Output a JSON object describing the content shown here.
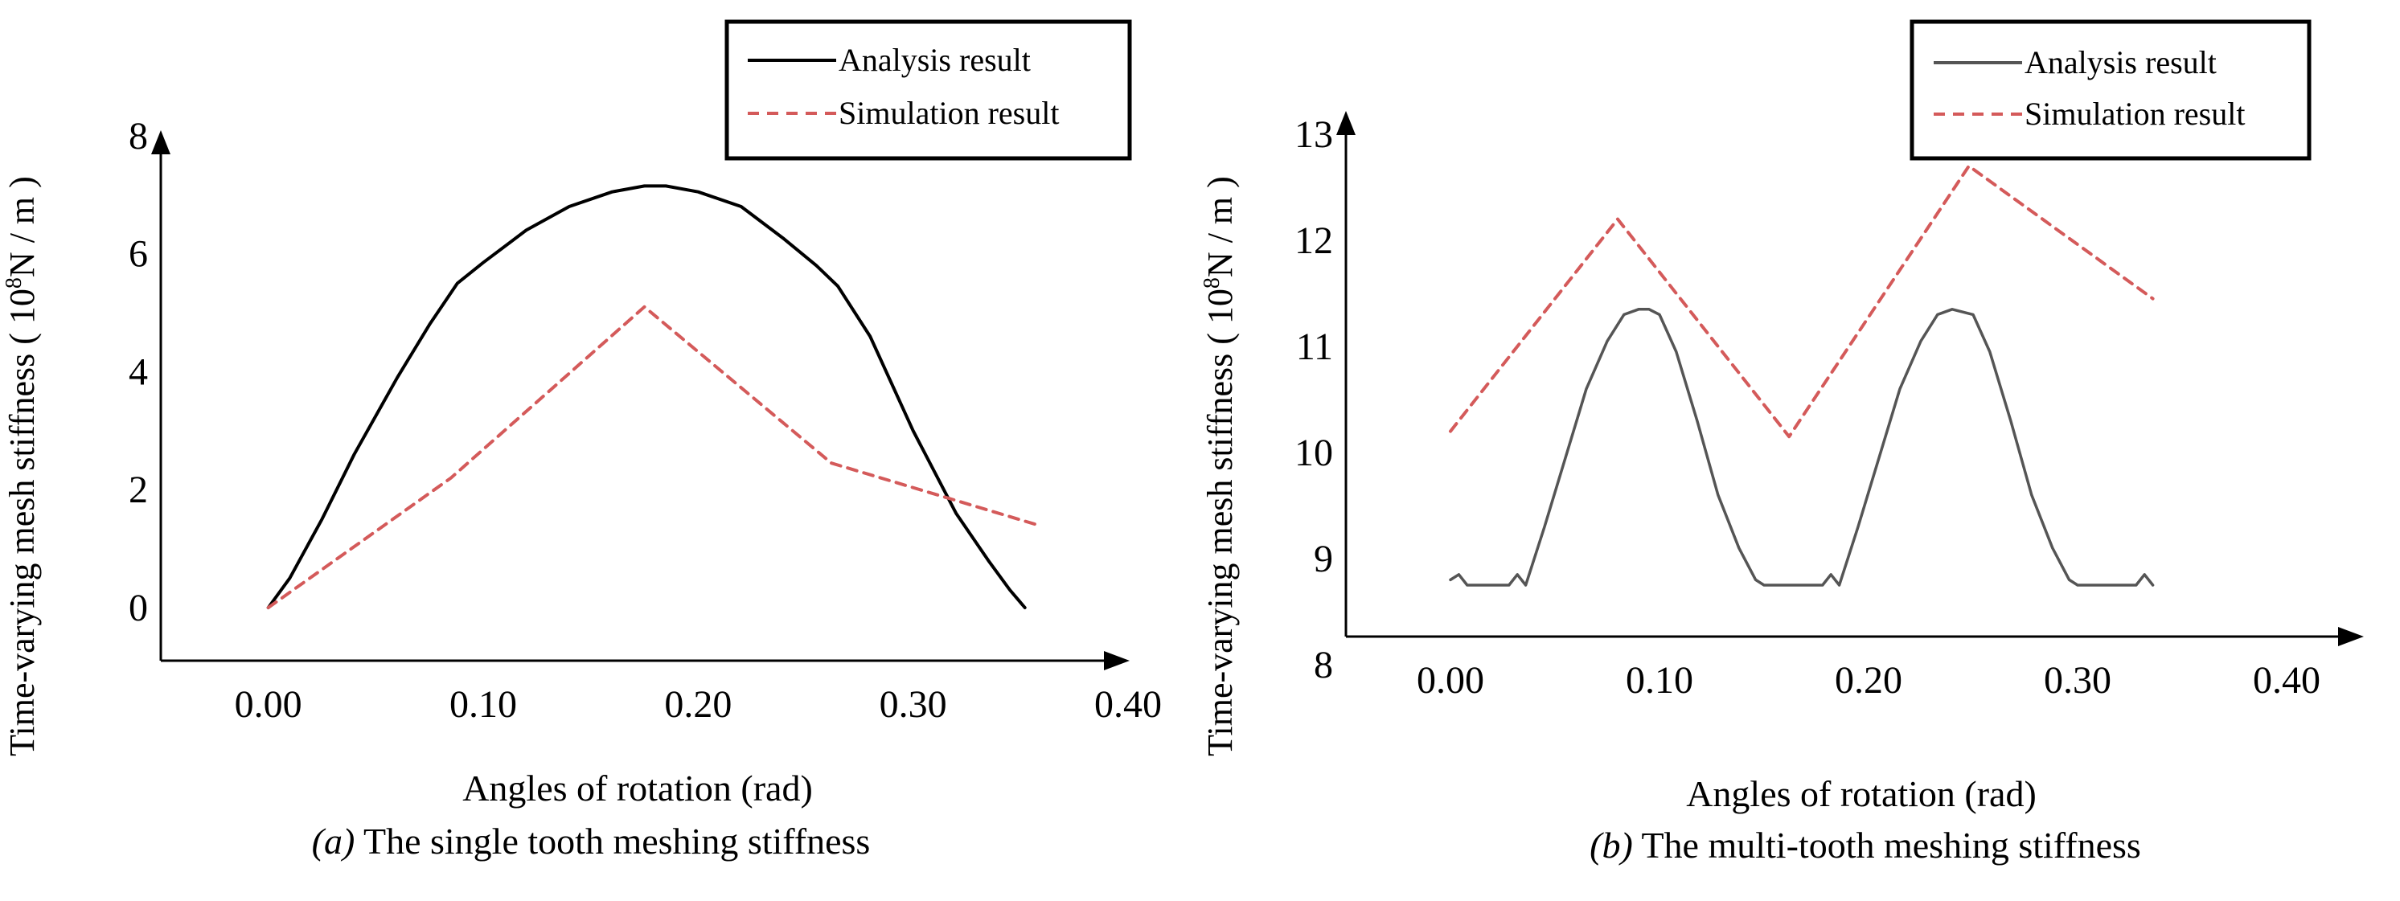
{
  "axis_titles": {
    "y_prefix": "Time-varying mesh stiffness ( 10",
    "y_exponent": "8",
    "y_suffix": "N / m )",
    "x": "Angles of rotation (rad)"
  },
  "legend": {
    "analysis": "Analysis result",
    "simulation": "Simulation result"
  },
  "colors": {
    "analysis": "#000000",
    "analysis_b": "#555555",
    "simulation": "#d45a5a",
    "axis": "#000000"
  },
  "chart_data": [
    {
      "type": "line",
      "title": "The single tooth meshing stiffness",
      "caption_tag": "(a)",
      "xlabel": "Angles of rotation (rad)",
      "ylabel": "Time-varying mesh stiffness ( 10^8 N / m )",
      "xlim": [
        -0.05,
        0.4
      ],
      "ylim": [
        -0.9,
        8
      ],
      "xticks": [
        "0.00",
        "0.10",
        "0.20",
        "0.30",
        "0.40"
      ],
      "xtick_values": [
        0,
        0.1,
        0.2,
        0.3,
        0.4
      ],
      "yticks": [
        "0",
        "2",
        "4",
        "6",
        "8"
      ],
      "ytick_values": [
        0,
        2,
        4,
        6,
        8
      ],
      "grid": false,
      "legend_position": "top-right",
      "series": [
        {
          "name": "Analysis result",
          "style": "solid",
          "x": [
            0.0,
            0.01,
            0.025,
            0.04,
            0.06,
            0.075,
            0.088,
            0.1,
            0.12,
            0.14,
            0.16,
            0.175,
            0.185,
            0.2,
            0.22,
            0.24,
            0.255,
            0.265,
            0.28,
            0.3,
            0.32,
            0.335,
            0.345,
            0.352
          ],
          "y": [
            0.0,
            0.5,
            1.5,
            2.6,
            3.9,
            4.8,
            5.5,
            5.85,
            6.4,
            6.8,
            7.05,
            7.15,
            7.15,
            7.05,
            6.8,
            6.25,
            5.8,
            5.45,
            4.6,
            3.0,
            1.6,
            0.8,
            0.3,
            0.0
          ]
        },
        {
          "name": "Simulation result",
          "style": "dashed",
          "x": [
            0.0,
            0.085,
            0.175,
            0.262,
            0.358
          ],
          "y": [
            0.0,
            2.2,
            5.1,
            2.45,
            1.4
          ]
        }
      ]
    },
    {
      "type": "line",
      "title": "The multi-tooth meshing stiffness",
      "caption_tag": "(b)",
      "xlabel": "Angles of rotation (rad)",
      "ylabel": "Time-varying mesh stiffness ( 10^8 N / m )",
      "xlim": [
        -0.05,
        0.4
      ],
      "ylim": [
        8,
        13
      ],
      "xticks": [
        "0.00",
        "0.10",
        "0.20",
        "0.30",
        "0.40"
      ],
      "xtick_values": [
        0,
        0.1,
        0.2,
        0.3,
        0.4
      ],
      "yticks": [
        "8",
        "9",
        "10",
        "11",
        "12",
        "13"
      ],
      "ytick_values": [
        8,
        9,
        10,
        11,
        12,
        13
      ],
      "grid": false,
      "legend_position": "top-right",
      "series": [
        {
          "name": "Analysis result",
          "style": "solid",
          "x": [
            0.0,
            0.004,
            0.008,
            0.02,
            0.028,
            0.032,
            0.036,
            0.045,
            0.055,
            0.065,
            0.075,
            0.083,
            0.09,
            0.095,
            0.1,
            0.108,
            0.118,
            0.128,
            0.138,
            0.146,
            0.15,
            0.16,
            0.17,
            0.178,
            0.182,
            0.186,
            0.195,
            0.205,
            0.215,
            0.225,
            0.233,
            0.24,
            0.25,
            0.258,
            0.268,
            0.278,
            0.288,
            0.296,
            0.3,
            0.31,
            0.32,
            0.328,
            0.332,
            0.336
          ],
          "y": [
            8.8,
            8.85,
            8.75,
            8.75,
            8.75,
            8.85,
            8.75,
            9.3,
            9.95,
            10.6,
            11.05,
            11.3,
            11.35,
            11.35,
            11.3,
            10.95,
            10.3,
            9.6,
            9.1,
            8.8,
            8.75,
            8.75,
            8.75,
            8.75,
            8.85,
            8.75,
            9.3,
            9.95,
            10.6,
            11.05,
            11.3,
            11.35,
            11.3,
            10.95,
            10.3,
            9.6,
            9.1,
            8.8,
            8.75,
            8.75,
            8.75,
            8.75,
            8.85,
            8.75
          ]
        },
        {
          "name": "Simulation result",
          "style": "dashed",
          "x": [
            0.0,
            0.08,
            0.162,
            0.248,
            0.336
          ],
          "y": [
            10.2,
            12.2,
            10.15,
            12.7,
            11.45
          ]
        }
      ]
    }
  ]
}
